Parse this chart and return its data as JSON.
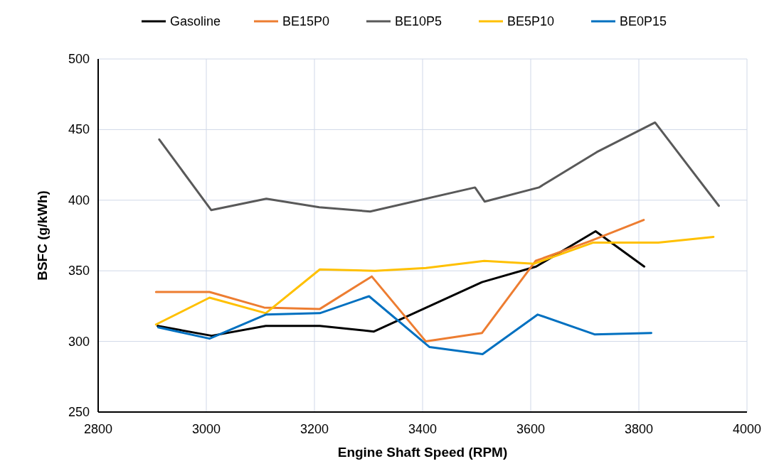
{
  "chart_data": {
    "type": "line",
    "xlabel": "Engine Shaft Speed (RPM)",
    "ylabel": "BSFC (g/kWh)",
    "xlim": [
      2800,
      4000
    ],
    "xticks": [
      2800,
      3000,
      3200,
      3400,
      3600,
      3800,
      4000
    ],
    "ylim": [
      250,
      500
    ],
    "yticks": [
      250,
      300,
      350,
      400,
      450,
      500
    ],
    "grid": true,
    "legend": "top",
    "marker": "none",
    "line_style": "solid",
    "series": [
      {
        "name": "Gasoline",
        "color": "#000000",
        "x": [
          2910,
          3010,
          3110,
          3210,
          3310,
          3510,
          3610,
          3720,
          3810
        ],
        "values": [
          311,
          304,
          311,
          311,
          307,
          342,
          353,
          378,
          353
        ]
      },
      {
        "name": "BE15P0",
        "color": "#ed7d31",
        "x": [
          2907,
          3006,
          3107,
          3210,
          3306,
          3406,
          3510,
          3609,
          3710,
          3809
        ],
        "values": [
          335,
          335,
          324,
          323,
          346,
          300,
          306,
          357,
          371,
          386
        ]
      },
      {
        "name": "BE10P5",
        "color": "#595959",
        "x": [
          2913,
          3009,
          3111,
          3209,
          3303,
          3497,
          3515,
          3615,
          3722,
          3830,
          3948
        ],
        "values": [
          443,
          393,
          401,
          395,
          392,
          409,
          399,
          409,
          434,
          455,
          396
        ]
      },
      {
        "name": "BE5P10",
        "color": "#ffc000",
        "x": [
          2907,
          3006,
          3110,
          3210,
          3312,
          3406,
          3514,
          3606,
          3716,
          3836,
          3938
        ],
        "values": [
          312,
          331,
          320,
          351,
          350,
          352,
          357,
          355,
          370,
          370,
          374
        ]
      },
      {
        "name": "BE0P15",
        "color": "#0070c0",
        "x": [
          2911,
          3006,
          3110,
          3210,
          3301,
          3413,
          3511,
          3613,
          3718,
          3823
        ],
        "values": [
          310,
          302,
          319,
          320,
          332,
          296,
          291,
          319,
          305,
          306
        ]
      }
    ]
  }
}
